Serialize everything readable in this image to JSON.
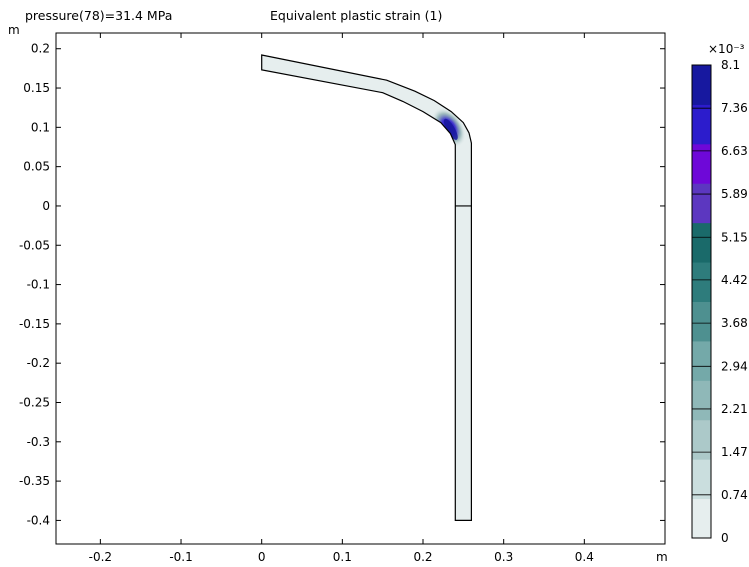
{
  "header": {
    "parameter_label": "pressure(78)=31.4 MPa",
    "plot_title": "Equivalent plastic strain (1)"
  },
  "chart_data": {
    "type": "heatmap",
    "title": "Equivalent plastic strain (1)",
    "subtitle": "pressure(78)=31.4 MPa",
    "xlabel": "m",
    "ylabel": "m",
    "xlim": [
      -0.255,
      0.5
    ],
    "ylim": [
      -0.43,
      0.22
    ],
    "x_ticks": [
      -0.2,
      -0.1,
      0,
      0.1,
      0.2,
      0.3,
      0.4
    ],
    "x_tick_labels": [
      "-0.2",
      "-0.1",
      "0",
      "0.1",
      "0.2",
      "0.3",
      "0.4"
    ],
    "y_ticks": [
      0.2,
      0.15,
      0.1,
      0.05,
      0,
      -0.05,
      -0.1,
      -0.15,
      -0.2,
      -0.25,
      -0.3,
      -0.35,
      -0.4
    ],
    "y_tick_labels": [
      "0.2",
      "0.15",
      "0.1",
      "0.05",
      "0",
      "-0.05",
      "-0.1",
      "-0.15",
      "-0.2",
      "-0.25",
      "-0.3",
      "-0.35",
      "-0.4"
    ],
    "geometry": {
      "outer_boundary": [
        [
          0,
          0.192
        ],
        [
          0.155,
          0.16
        ],
        [
          0.19,
          0.146
        ],
        [
          0.214,
          0.134
        ],
        [
          0.235,
          0.12
        ],
        [
          0.25,
          0.106
        ],
        [
          0.257,
          0.093
        ],
        [
          0.26,
          0.08
        ],
        [
          0.26,
          -0.4
        ],
        [
          0.24,
          -0.4
        ],
        [
          0.24,
          0.078
        ],
        [
          0.234,
          0.092
        ],
        [
          0.222,
          0.106
        ],
        [
          0.2,
          0.12
        ],
        [
          0.175,
          0.133
        ],
        [
          0.15,
          0.144
        ],
        [
          0,
          0.173
        ]
      ],
      "section_line": [
        [
          0.24,
          0
        ],
        [
          0.26,
          0
        ]
      ]
    },
    "strain_concentration": {
      "location": [
        0.232,
        0.1
      ],
      "peak_value": 8.1
    },
    "colorbar": {
      "multiplier": "×10⁻³",
      "ticks": [
        8.1,
        7.36,
        6.63,
        5.89,
        5.15,
        4.42,
        3.68,
        2.94,
        2.21,
        1.47,
        0.74,
        0
      ],
      "tick_labels": [
        "8.1",
        "7.36",
        "6.63",
        "5.89",
        "5.15",
        "4.42",
        "3.68",
        "2.94",
        "2.21",
        "1.47",
        "0.74",
        "0"
      ],
      "band_colors": [
        "#e6eeee",
        "#cadede",
        "#acc9c9",
        "#8fb8b8",
        "#74a9a9",
        "#4e9090",
        "#2e7c7c",
        "#1a6a6a",
        "#5c37c0",
        "#6e08d8",
        "#2c1ccc",
        "#17189f"
      ]
    }
  },
  "colors": {
    "domain_fill": "#e6eeee",
    "domain_outline": "#000000",
    "frame": "#000000"
  }
}
